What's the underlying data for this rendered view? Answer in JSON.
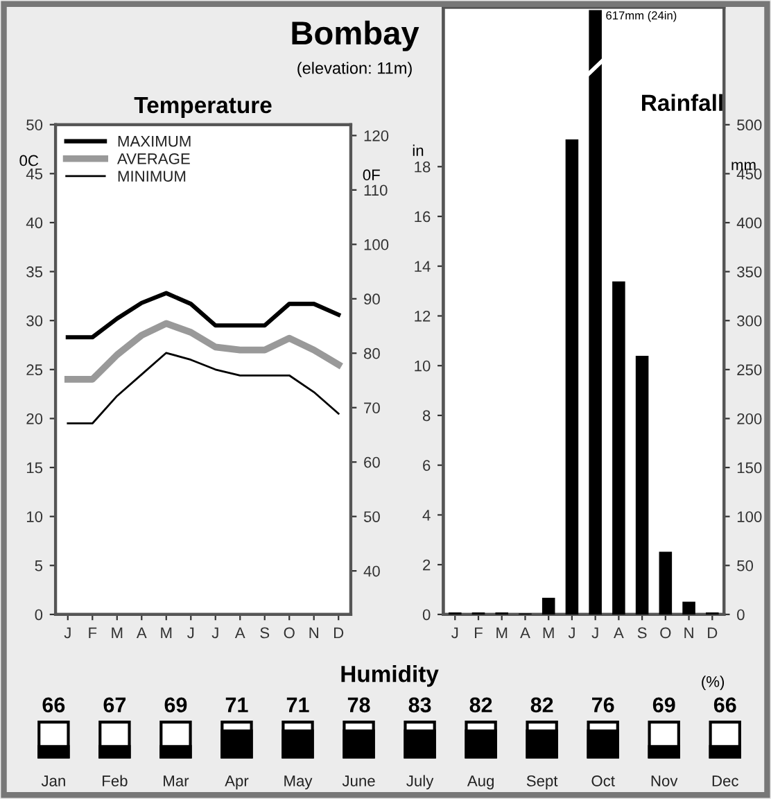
{
  "chart_data": [
    {
      "type": "other",
      "title": "Bombay",
      "subtitle": "(elevation: 11m)"
    },
    {
      "type": "line",
      "title": "Temperature",
      "ylabel": "0C",
      "y2label": "0F",
      "categories": [
        "J",
        "F",
        "M",
        "A",
        "M",
        "J",
        "J",
        "A",
        "S",
        "O",
        "N",
        "D"
      ],
      "series": [
        {
          "name": "MAXIMUM",
          "color": "#000000",
          "values": [
            28.3,
            28.3,
            30.2,
            31.8,
            32.8,
            31.7,
            29.5,
            29.5,
            29.5,
            31.7,
            31.7,
            30.6
          ]
        },
        {
          "name": "AVERAGE",
          "color": "#999999",
          "values": [
            24,
            24,
            26.5,
            28.5,
            29.7,
            28.8,
            27.3,
            27,
            27,
            28.2,
            27,
            25.5
          ]
        },
        {
          "name": "MINIMUM",
          "color": "#000000",
          "values": [
            19.5,
            19.5,
            22.3,
            24.5,
            26.7,
            26,
            25,
            24.4,
            24.4,
            24.4,
            22.7,
            20.5
          ]
        }
      ],
      "ylim": [
        0,
        50
      ],
      "yticks": [
        0,
        5,
        10,
        15,
        20,
        25,
        30,
        35,
        40,
        45,
        50
      ],
      "y2lim": [
        32,
        122
      ],
      "y2ticks": [
        40,
        50,
        60,
        70,
        80,
        90,
        100,
        110,
        120
      ],
      "legend": "top left",
      "grid": false,
      "marker": "none",
      "line_style": "solid"
    },
    {
      "type": "bar",
      "title": "Rainfall",
      "ylabel": "in",
      "y2label": "mm",
      "categories": [
        "J",
        "F",
        "M",
        "A",
        "M",
        "J",
        "J",
        "A",
        "S",
        "O",
        "N",
        "D"
      ],
      "series": [
        {
          "color": "#000000",
          "axis": "y2",
          "values": [
            2,
            2,
            2,
            1,
            17,
            485,
            617,
            340,
            264,
            64,
            13,
            2
          ]
        }
      ],
      "annotations": [
        "617mm (24in)"
      ],
      "ylim": [
        0,
        24.41
      ],
      "yticks": [
        0,
        2,
        4,
        6,
        8,
        10,
        12,
        14,
        16,
        18
      ],
      "y2lim": [
        0,
        620
      ],
      "y2ticks": [
        0,
        50,
        100,
        150,
        200,
        250,
        300,
        350,
        400,
        450,
        500
      ],
      "grid": false
    },
    {
      "type": "other",
      "title": "Humidity",
      "categories": [
        "Jan",
        "Feb",
        "Mar",
        "Apr",
        "May",
        "June",
        "July",
        "Aug",
        "Sept",
        "Oct",
        "Nov",
        "Dec"
      ],
      "values": [
        66,
        67,
        69,
        71,
        71,
        78,
        83,
        82,
        82,
        76,
        69,
        66
      ],
      "data_labels": true,
      "annotations": [
        "(%)"
      ]
    }
  ]
}
